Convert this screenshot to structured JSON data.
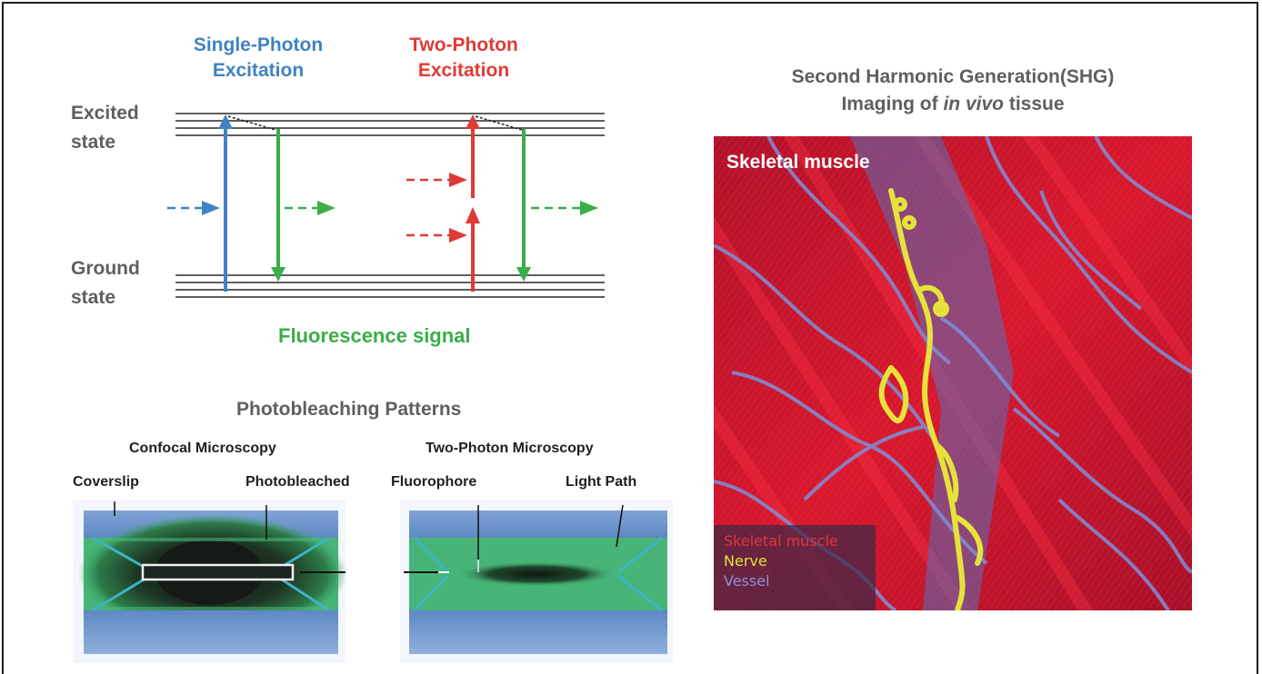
{
  "energy": {
    "single_photon_line1": "Single-Photon",
    "single_photon_line2": "Excitation",
    "two_photon_line1": "Two-Photon",
    "two_photon_line2": "Excitation",
    "excited_line1": "Excited",
    "excited_line2": "state",
    "ground_line1": "Ground",
    "ground_line2": "state",
    "fluorescence": "Fluorescence signal"
  },
  "photobleaching": {
    "title": "Photobleaching Patterns",
    "confocal": "Confocal Microscopy",
    "two_photon": "Two-Photon Microscopy",
    "coverslip": "Coverslip",
    "photobleached": "Photobleached",
    "fluorophore": "Fluorophore",
    "light_path": "Light Path"
  },
  "shg": {
    "title_line1": "Second Harmonic Generation(SHG)",
    "title_line2_a": "Imaging of ",
    "title_line2_b": "in vivo",
    "title_line2_c": " tissue",
    "photo_label": "Skeletal muscle",
    "legend": [
      {
        "label": "Skeletal muscle",
        "color": "#e8323c"
      },
      {
        "label": "Nerve",
        "color": "#e6e23a"
      },
      {
        "label": "Vessel",
        "color": "#8f8fd8"
      }
    ]
  },
  "colors": {
    "blue": "#3f83c3",
    "red": "#e03a36",
    "green": "#3bad4a",
    "text_gray": "#5f5f63"
  }
}
